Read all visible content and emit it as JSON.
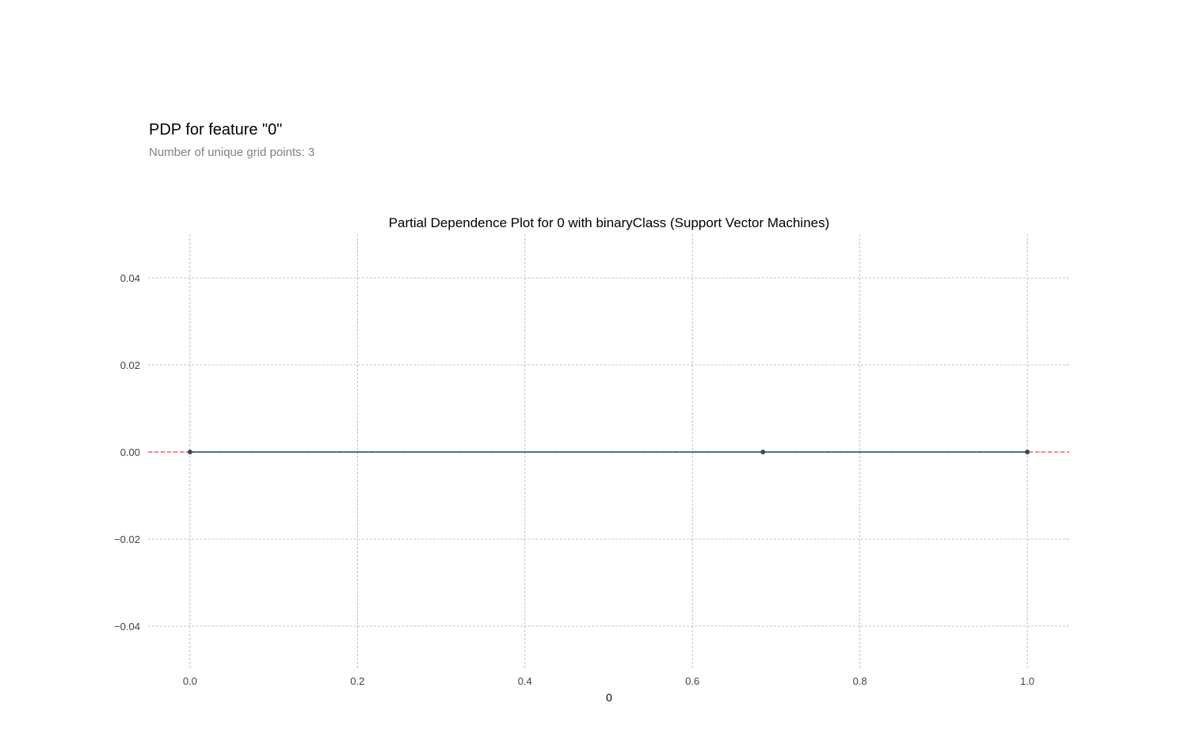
{
  "header": {
    "title": "PDP for feature \"0\"",
    "subtitle": "Number of unique grid points: 3"
  },
  "chart_data": {
    "type": "line",
    "title": "Partial Dependence Plot for 0 with binaryClass (Support Vector Machines)",
    "xlabel": "0",
    "ylabel": "",
    "xlim": [
      -0.05,
      1.05
    ],
    "ylim": [
      -0.05,
      0.05
    ],
    "x_ticks": [
      0.0,
      0.2,
      0.4,
      0.6,
      0.8,
      1.0
    ],
    "x_tick_labels": [
      "0.0",
      "0.2",
      "0.4",
      "0.6",
      "0.8",
      "1.0"
    ],
    "y_ticks": [
      0.04,
      0.02,
      0.0,
      -0.02,
      -0.04
    ],
    "y_tick_labels": [
      "0.04",
      "0.02",
      "0.00",
      "−0.02",
      "−0.04"
    ],
    "grid": true,
    "series": [
      {
        "x": [
          0.0,
          0.6842,
          1.0
        ],
        "values": [
          0.0,
          0.0,
          0.0
        ],
        "color": "#1a4a6e",
        "marker_color": "#3a4a55"
      }
    ],
    "reference_line": {
      "y": 0.0,
      "color": "#e8473f"
    }
  }
}
